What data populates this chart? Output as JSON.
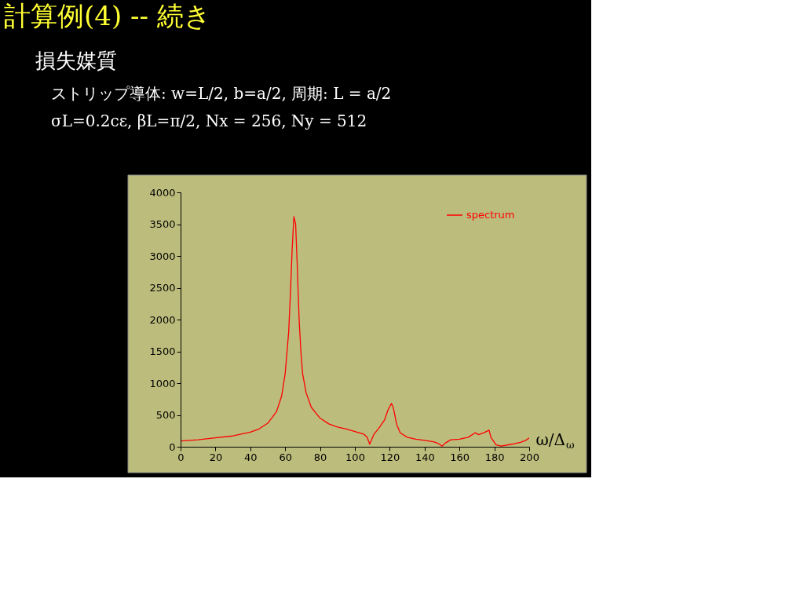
{
  "chart_data": {
    "type": "line",
    "title": "計算例(4)  --  続き",
    "annotations": [
      "損失媒質",
      "ストリップ導体: w=L/2,  b=a/2,  周期: L = a/2",
      "σL=0.2cε, βL=π/2, Nx = 256,  Ny = 512"
    ],
    "xlabel": "ω/Δ$_{ω}$",
    "xlim": [
      0,
      200
    ],
    "xticks": [
      0,
      20,
      40,
      60,
      80,
      100,
      120,
      140,
      160,
      180,
      200
    ],
    "ylim": [
      0,
      4000
    ],
    "yticks": [
      0,
      500,
      1000,
      1500,
      2000,
      2500,
      3000,
      3500,
      4000
    ],
    "legend": "top right",
    "marker": "none",
    "line_style": "solid",
    "series": [
      {
        "name": "spectrum",
        "color": "#ff0000",
        "x": [
          0,
          10,
          20,
          30,
          40,
          45,
          50,
          55,
          58,
          60,
          62,
          63,
          64,
          65,
          66,
          67,
          68,
          69,
          70,
          72,
          75,
          80,
          85,
          90,
          95,
          100,
          105,
          107,
          108.5,
          111,
          114,
          117,
          119,
          121,
          122,
          124,
          126,
          130,
          135,
          140,
          145,
          148,
          150,
          152,
          155,
          160,
          165,
          169,
          171,
          174,
          177,
          178,
          181,
          184,
          190,
          195,
          198,
          200
        ],
        "values": [
          90,
          110,
          140,
          170,
          230,
          280,
          370,
          550,
          800,
          1150,
          1800,
          2400,
          3100,
          3620,
          3500,
          2800,
          2000,
          1500,
          1150,
          850,
          620,
          450,
          360,
          310,
          280,
          240,
          200,
          150,
          40,
          200,
          300,
          420,
          580,
          680,
          620,
          350,
          220,
          150,
          120,
          100,
          80,
          50,
          10,
          60,
          110,
          120,
          150,
          220,
          190,
          220,
          260,
          150,
          30,
          10,
          40,
          70,
          100,
          140
        ]
      }
    ]
  }
}
